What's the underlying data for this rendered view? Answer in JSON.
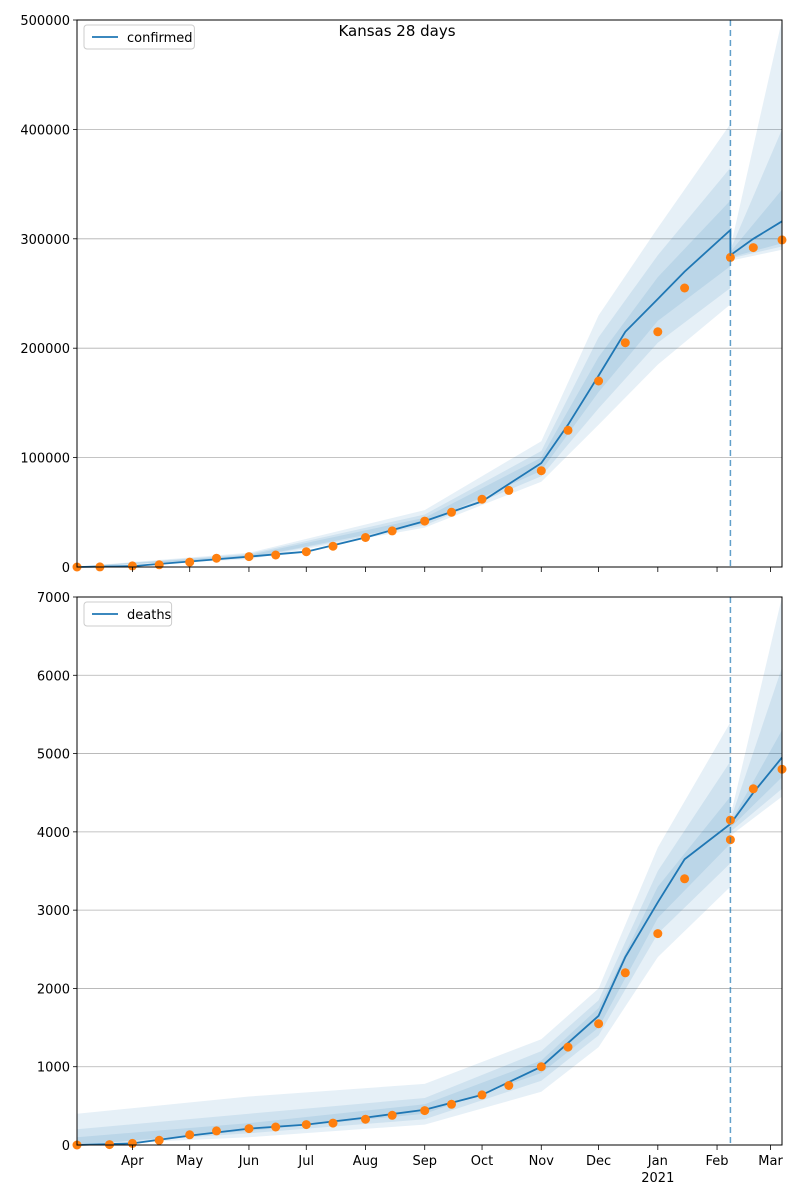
{
  "figure": {
    "suptitle": "Kansas 28 days"
  },
  "colors": {
    "line": "#1f77b4",
    "observed": "#ff7f0e",
    "band": "#1f77b4",
    "grid": "#b0b0b0",
    "cutoff": "#1f77b4"
  },
  "chart_data": [
    {
      "type": "line",
      "legend": [
        "confirmed"
      ],
      "legend_position": "upper-left",
      "grid": "horizontal",
      "x_range": [
        "2020-03-03",
        "2021-03-07"
      ],
      "ylim": [
        0,
        500000
      ],
      "yticks": [
        0,
        100000,
        200000,
        300000,
        400000,
        500000
      ],
      "ytick_labels": [
        "0",
        "100000",
        "200000",
        "300000",
        "400000",
        "500000"
      ],
      "forecast_start": "2021-02-08",
      "series": [
        {
          "name": "confirmed",
          "kind": "model line",
          "points": [
            [
              "2020-03-03",
              0
            ],
            [
              "2020-04-01",
              800
            ],
            [
              "2020-05-01",
              5000
            ],
            [
              "2020-06-01",
              9500
            ],
            [
              "2020-07-01",
              14000
            ],
            [
              "2020-08-01",
              27000
            ],
            [
              "2020-09-01",
              42000
            ],
            [
              "2020-10-01",
              60000
            ],
            [
              "2020-11-01",
              95000
            ],
            [
              "2020-11-15",
              130000
            ],
            [
              "2020-12-01",
              175000
            ],
            [
              "2020-12-15",
              215000
            ],
            [
              "2021-01-01",
              245000
            ],
            [
              "2021-01-15",
              270000
            ],
            [
              "2021-02-08",
              308000
            ],
            [
              "2021-02-08",
              285000
            ],
            [
              "2021-02-20",
              300000
            ],
            [
              "2021-03-07",
              316000
            ]
          ]
        },
        {
          "name": "observed",
          "kind": "scatter",
          "points": [
            [
              "2020-03-03",
              0
            ],
            [
              "2020-03-15",
              100
            ],
            [
              "2020-04-01",
              1000
            ],
            [
              "2020-04-15",
              2000
            ],
            [
              "2020-05-01",
              4500
            ],
            [
              "2020-05-15",
              8000
            ],
            [
              "2020-06-01",
              9500
            ],
            [
              "2020-06-15",
              11000
            ],
            [
              "2020-07-01",
              14000
            ],
            [
              "2020-07-15",
              19000
            ],
            [
              "2020-08-01",
              27000
            ],
            [
              "2020-08-15",
              33000
            ],
            [
              "2020-09-01",
              42000
            ],
            [
              "2020-09-15",
              50000
            ],
            [
              "2020-10-01",
              62000
            ],
            [
              "2020-10-15",
              70000
            ],
            [
              "2020-11-01",
              88000
            ],
            [
              "2020-11-15",
              125000
            ],
            [
              "2020-12-01",
              170000
            ],
            [
              "2020-12-15",
              205000
            ],
            [
              "2021-01-01",
              215000
            ],
            [
              "2021-01-15",
              255000
            ],
            [
              "2021-02-08",
              283000
            ],
            [
              "2021-02-20",
              292000
            ],
            [
              "2021-03-07",
              299000
            ]
          ]
        }
      ],
      "bands": [
        {
          "level": "outer",
          "points": [
            [
              "2020-03-03",
              0,
              500
            ],
            [
              "2020-06-01",
              7000,
              13000
            ],
            [
              "2020-09-01",
              36000,
              52000
            ],
            [
              "2020-11-01",
              78000,
              115000
            ],
            [
              "2020-12-01",
              130000,
              230000
            ],
            [
              "2021-01-01",
              185000,
              310000
            ],
            [
              "2021-02-08",
              240000,
              405000
            ],
            [
              "2021-02-08",
              280000,
              292000
            ],
            [
              "2021-03-07",
              290000,
              500000
            ]
          ]
        },
        {
          "level": "middle",
          "points": [
            [
              "2020-03-03",
              0,
              300
            ],
            [
              "2020-06-01",
              8000,
              12000
            ],
            [
              "2020-09-01",
              38000,
              48000
            ],
            [
              "2020-11-01",
              83000,
              106000
            ],
            [
              "2020-12-01",
              145000,
              210000
            ],
            [
              "2021-01-01",
              205000,
              285000
            ],
            [
              "2021-02-08",
              255000,
              365000
            ],
            [
              "2021-02-08",
              282000,
              290000
            ],
            [
              "2021-03-07",
              293000,
              400000
            ]
          ]
        },
        {
          "level": "inner",
          "points": [
            [
              "2020-03-03",
              0,
              200
            ],
            [
              "2020-06-01",
              8500,
              11000
            ],
            [
              "2020-09-01",
              40000,
              45000
            ],
            [
              "2020-11-01",
              88000,
              100000
            ],
            [
              "2020-12-01",
              160000,
              192000
            ],
            [
              "2021-01-01",
              225000,
              265000
            ],
            [
              "2021-02-08",
              275000,
              335000
            ],
            [
              "2021-02-08",
              283000,
              288000
            ],
            [
              "2021-03-07",
              296000,
              345000
            ]
          ]
        }
      ]
    },
    {
      "type": "line",
      "legend": [
        "deaths"
      ],
      "legend_position": "upper-left",
      "grid": "horizontal",
      "x_range": [
        "2020-03-03",
        "2021-03-07"
      ],
      "ylim": [
        0,
        7000
      ],
      "yticks": [
        0,
        1000,
        2000,
        3000,
        4000,
        5000,
        6000,
        7000
      ],
      "ytick_labels": [
        "0",
        "1000",
        "2000",
        "3000",
        "4000",
        "5000",
        "6000",
        "7000"
      ],
      "xtick_labels": [
        "Apr",
        "May",
        "Jun",
        "Jul",
        "Aug",
        "Sep",
        "Oct",
        "Nov",
        "Dec",
        "Jan",
        "Feb",
        "Mar"
      ],
      "xtick_sublabel": "2021",
      "forecast_start": "2021-02-08",
      "series": [
        {
          "name": "deaths",
          "kind": "model line",
          "points": [
            [
              "2020-03-03",
              0
            ],
            [
              "2020-04-01",
              20
            ],
            [
              "2020-05-01",
              120
            ],
            [
              "2020-06-01",
              210
            ],
            [
              "2020-07-01",
              260
            ],
            [
              "2020-08-01",
              350
            ],
            [
              "2020-09-01",
              450
            ],
            [
              "2020-10-01",
              640
            ],
            [
              "2020-11-01",
              1000
            ],
            [
              "2020-12-01",
              1650
            ],
            [
              "2020-12-15",
              2400
            ],
            [
              "2021-01-01",
              3100
            ],
            [
              "2021-01-15",
              3650
            ],
            [
              "2021-02-08",
              4100
            ],
            [
              "2021-02-20",
              4500
            ],
            [
              "2021-03-07",
              4950
            ]
          ]
        },
        {
          "name": "observed",
          "kind": "scatter",
          "points": [
            [
              "2020-03-03",
              0
            ],
            [
              "2020-03-20",
              5
            ],
            [
              "2020-04-01",
              20
            ],
            [
              "2020-04-15",
              60
            ],
            [
              "2020-05-01",
              130
            ],
            [
              "2020-05-15",
              180
            ],
            [
              "2020-06-01",
              210
            ],
            [
              "2020-06-15",
              230
            ],
            [
              "2020-07-01",
              260
            ],
            [
              "2020-07-15",
              280
            ],
            [
              "2020-08-01",
              330
            ],
            [
              "2020-08-15",
              380
            ],
            [
              "2020-09-01",
              440
            ],
            [
              "2020-09-15",
              520
            ],
            [
              "2020-10-01",
              640
            ],
            [
              "2020-10-15",
              760
            ],
            [
              "2020-11-01",
              1000
            ],
            [
              "2020-11-15",
              1250
            ],
            [
              "2020-12-01",
              1550
            ],
            [
              "2020-12-15",
              2200
            ],
            [
              "2021-01-01",
              2700
            ],
            [
              "2021-01-15",
              3400
            ],
            [
              "2021-02-08",
              3900
            ],
            [
              "2021-02-08",
              4150
            ],
            [
              "2021-02-20",
              4550
            ],
            [
              "2021-03-07",
              4800
            ]
          ]
        }
      ],
      "bands": [
        {
          "level": "outer",
          "points": [
            [
              "2020-03-03",
              0,
              400
            ],
            [
              "2020-06-01",
              100,
              620
            ],
            [
              "2020-09-01",
              260,
              780
            ],
            [
              "2020-11-01",
              680,
              1350
            ],
            [
              "2020-12-01",
              1250,
              2000
            ],
            [
              "2021-01-01",
              2400,
              3800
            ],
            [
              "2021-02-08",
              3300,
              5400
            ],
            [
              "2021-02-08",
              3950,
              4200
            ],
            [
              "2021-03-07",
              4450,
              7000
            ]
          ]
        },
        {
          "level": "middle",
          "points": [
            [
              "2020-03-03",
              0,
              200
            ],
            [
              "2020-06-01",
              150,
              400
            ],
            [
              "2020-09-01",
              330,
              600
            ],
            [
              "2020-11-01",
              820,
              1200
            ],
            [
              "2020-12-01",
              1400,
              1850
            ],
            [
              "2021-01-01",
              2700,
              3500
            ],
            [
              "2021-02-08",
              3600,
              4900
            ],
            [
              "2021-02-08",
              4000,
              4150
            ],
            [
              "2021-03-07",
              4550,
              6100
            ]
          ]
        },
        {
          "level": "inner",
          "points": [
            [
              "2020-03-03",
              0,
              100
            ],
            [
              "2020-06-01",
              180,
              280
            ],
            [
              "2020-09-01",
              400,
              520
            ],
            [
              "2020-11-01",
              920,
              1080
            ],
            [
              "2020-12-01",
              1500,
              1750
            ],
            [
              "2021-01-01",
              2900,
              3300
            ],
            [
              "2021-02-08",
              3850,
              4450
            ],
            [
              "2021-02-08",
              4050,
              4120
            ],
            [
              "2021-03-07",
              4700,
              5300
            ]
          ]
        }
      ]
    }
  ]
}
